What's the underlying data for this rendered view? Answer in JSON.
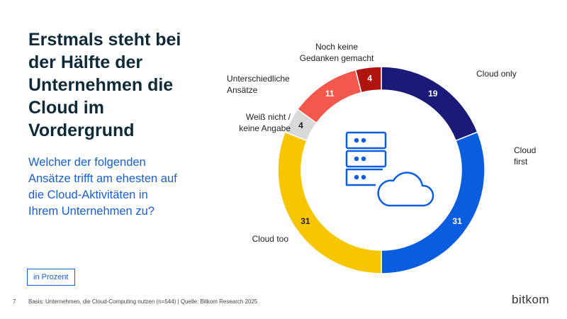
{
  "header": {
    "title": "Erstmals steht bei der Hälfte der Unternehmen die Cloud im Vordergrund",
    "subtitle": "Welcher der folgenden Ansätze trifft am ehesten auf die Cloud-Aktivitäten in Ihrem Unternehmen zu?",
    "unit_button": "in Prozent"
  },
  "chart_data": {
    "type": "donut",
    "categories": [
      "Cloud only",
      "Cloud\nfirst",
      "Cloud too",
      "Weiß nicht /\nkeine Angabe",
      "Unterschiedliche\nAnsätze",
      "Noch keine\nGedanken gemacht"
    ],
    "values": [
      19,
      31,
      31,
      4,
      11,
      4
    ],
    "colors": [
      "#1b1a78",
      "#0b5ddf",
      "#f8c600",
      "#d9d9d9",
      "#f4574b",
      "#b0140f"
    ]
  },
  "footer": {
    "page": "7",
    "source": "Basis: Unternehmen, die Cloud-Computing nutzen (n=544) | Quelle: Bitkom Research 2025",
    "logo": "bitkom"
  }
}
